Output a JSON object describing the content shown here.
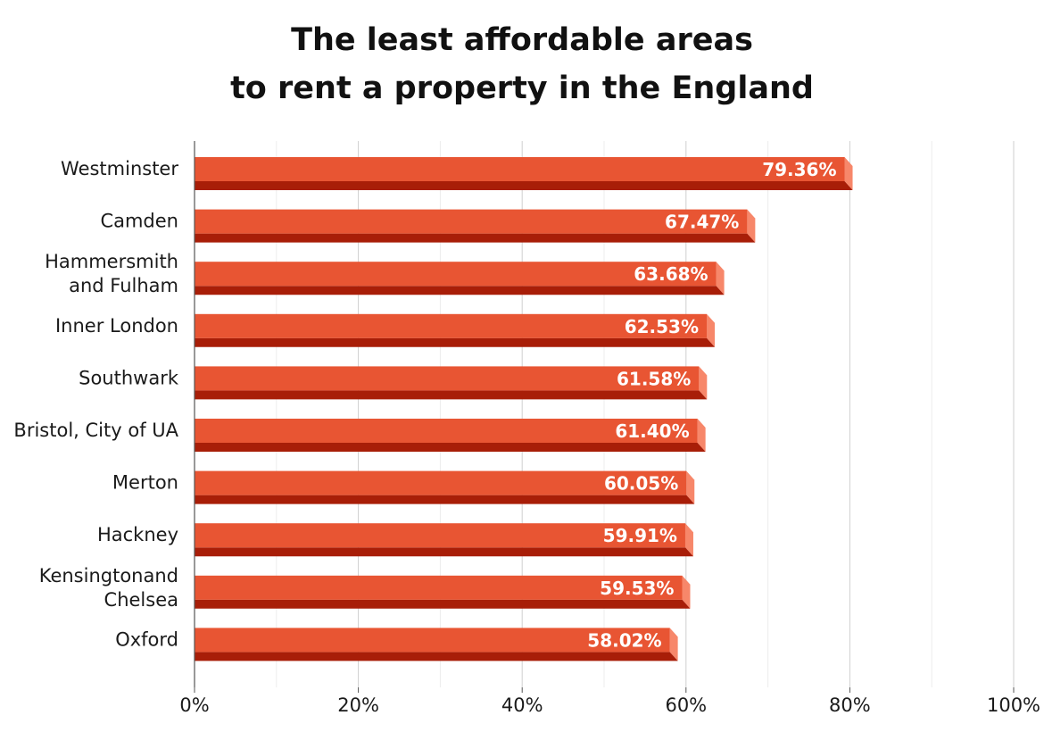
{
  "chart_data": {
    "type": "bar",
    "orientation": "horizontal",
    "title_lines": [
      "The least affordable areas",
      "to rent a property in the England"
    ],
    "categories": [
      "Westminster",
      "Camden",
      "Hammersmith and Fulham",
      "Inner London",
      "Southwark",
      "Bristol, City of UA",
      "Merton",
      "Hackney",
      "Kensingtonand Chelsea",
      "Oxford"
    ],
    "category_label_lines": [
      [
        "Westminster"
      ],
      [
        "Camden"
      ],
      [
        "Hammersmith",
        "and Fulham"
      ],
      [
        "Inner London"
      ],
      [
        "Southwark"
      ],
      [
        "Bristol, City of UA"
      ],
      [
        "Merton"
      ],
      [
        "Hackney"
      ],
      [
        "Kensingtonand",
        "Chelsea"
      ],
      [
        "Oxford"
      ]
    ],
    "values": [
      79.36,
      67.47,
      63.68,
      62.53,
      61.58,
      61.4,
      60.05,
      59.91,
      59.53,
      58.02
    ],
    "value_labels": [
      "79.36%",
      "67.47%",
      "63.68%",
      "62.53%",
      "61.58%",
      "61.40%",
      "60.05%",
      "59.91%",
      "59.53%",
      "58.02%"
    ],
    "xlim": [
      0,
      100
    ],
    "x_ticks": [
      0,
      20,
      40,
      60,
      80,
      100
    ],
    "x_tick_labels": [
      "0%",
      "20%",
      "40%",
      "60%",
      "80%",
      "100%"
    ],
    "grid": true,
    "xlabel": "",
    "ylabel": "",
    "colors": {
      "bar_face": "#e85533",
      "bar_bottom": "#a81e08",
      "bar_side": "#f7876a",
      "grid": "#dddddd",
      "axis": "#555555"
    }
  }
}
